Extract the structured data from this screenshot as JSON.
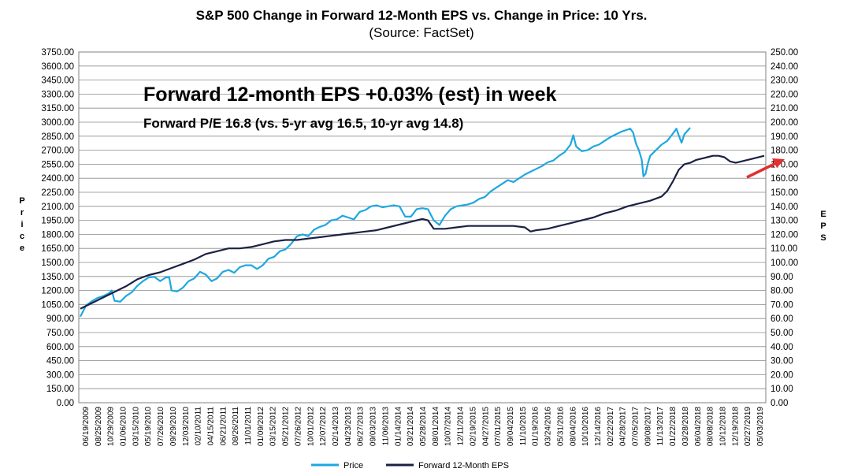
{
  "chart_data": {
    "type": "line",
    "title": "S&P 500 Change in Forward 12-Month EPS vs. Change in Price: 10 Yrs.",
    "subtitle": "(Source: FactSet)",
    "ylabel_left": "Price",
    "ylabel_right": "EPS",
    "ylim_left": [
      0,
      3750
    ],
    "ylim_right": [
      0,
      250
    ],
    "yticks_left": [
      "0.00",
      "150.00",
      "300.00",
      "450.00",
      "600.00",
      "750.00",
      "900.00",
      "1050.00",
      "1200.00",
      "1350.00",
      "1500.00",
      "1650.00",
      "1800.00",
      "1950.00",
      "2100.00",
      "2250.00",
      "2400.00",
      "2550.00",
      "2700.00",
      "2850.00",
      "3000.00",
      "3150.00",
      "3300.00",
      "3450.00",
      "3600.00",
      "3750.00"
    ],
    "yticks_right": [
      "0.00",
      "10.00",
      "20.00",
      "30.00",
      "40.00",
      "50.00",
      "60.00",
      "70.00",
      "80.00",
      "90.00",
      "100.00",
      "110.00",
      "120.00",
      "130.00",
      "140.00",
      "150.00",
      "160.00",
      "170.00",
      "180.00",
      "190.00",
      "200.00",
      "210.00",
      "220.00",
      "230.00",
      "240.00",
      "250.00"
    ],
    "x_tick_labels": [
      "06/19/2009",
      "08/25/2009",
      "10/29/2009",
      "01/06/2010",
      "03/15/2010",
      "05/19/2010",
      "07/26/2010",
      "09/29/2010",
      "12/03/2010",
      "02/10/2011",
      "04/15/2011",
      "06/21/2011",
      "08/26/2011",
      "11/01/2011",
      "01/09/2012",
      "03/15/2012",
      "05/21/2012",
      "07/26/2012",
      "10/01/2012",
      "12/07/2012",
      "02/14/2013",
      "04/23/2013",
      "06/27/2013",
      "09/03/2013",
      "11/06/2013",
      "01/14/2014",
      "03/21/2014",
      "05/28/2014",
      "08/01/2014",
      "10/07/2014",
      "12/11/2014",
      "02/19/2015",
      "04/27/2015",
      "07/01/2015",
      "09/04/2015",
      "11/10/2015",
      "01/19/2016",
      "03/24/2016",
      "05/31/2016",
      "08/04/2016",
      "10/10/2016",
      "12/14/2016",
      "02/22/2017",
      "04/28/2017",
      "07/05/2017",
      "09/08/2017",
      "11/13/2017",
      "01/22/2018",
      "03/28/2018",
      "06/04/2018",
      "08/08/2018",
      "10/12/2018",
      "12/19/2018",
      "02/27/2019",
      "05/03/2019"
    ],
    "annotations": [
      "Forward 12-month EPS +0.03% (est) in week",
      "Forward P/E 16.8 (vs. 5-yr avg 16.5, 10-yr avg 14.8)"
    ],
    "series": [
      {
        "name": "Price",
        "axis": "left",
        "color": "#1ea7e1",
        "points": [
          [
            0,
            921
          ],
          [
            1,
            1040
          ],
          [
            2,
            1085
          ],
          [
            3,
            1120
          ],
          [
            4,
            1140
          ],
          [
            5,
            1170
          ],
          [
            5.5,
            1200
          ],
          [
            6,
            1090
          ],
          [
            7,
            1080
          ],
          [
            8,
            1140
          ],
          [
            9,
            1180
          ],
          [
            10,
            1250
          ],
          [
            11,
            1300
          ],
          [
            12,
            1340
          ],
          [
            13,
            1345
          ],
          [
            14,
            1300
          ],
          [
            15,
            1340
          ],
          [
            15.6,
            1340
          ],
          [
            16,
            1200
          ],
          [
            17,
            1190
          ],
          [
            18,
            1230
          ],
          [
            19,
            1300
          ],
          [
            20,
            1330
          ],
          [
            21,
            1400
          ],
          [
            22,
            1370
          ],
          [
            23,
            1300
          ],
          [
            24,
            1330
          ],
          [
            25,
            1400
          ],
          [
            26,
            1420
          ],
          [
            27,
            1390
          ],
          [
            28,
            1450
          ],
          [
            29,
            1470
          ],
          [
            30,
            1470
          ],
          [
            31,
            1430
          ],
          [
            32,
            1470
          ],
          [
            33,
            1540
          ],
          [
            34,
            1560
          ],
          [
            35,
            1620
          ],
          [
            36,
            1640
          ],
          [
            37,
            1700
          ],
          [
            38,
            1780
          ],
          [
            39,
            1800
          ],
          [
            40,
            1780
          ],
          [
            41,
            1850
          ],
          [
            42,
            1880
          ],
          [
            43,
            1900
          ],
          [
            44,
            1950
          ],
          [
            45,
            1960
          ],
          [
            46,
            2000
          ],
          [
            47,
            1980
          ],
          [
            48,
            1960
          ],
          [
            49,
            2040
          ],
          [
            50,
            2060
          ],
          [
            51,
            2100
          ],
          [
            52,
            2110
          ],
          [
            53,
            2090
          ],
          [
            54,
            2100
          ],
          [
            55,
            2110
          ],
          [
            56,
            2100
          ],
          [
            57,
            1990
          ],
          [
            58,
            1990
          ],
          [
            59,
            2070
          ],
          [
            60,
            2080
          ],
          [
            61,
            2070
          ],
          [
            62,
            1950
          ],
          [
            63,
            1900
          ],
          [
            64,
            2000
          ],
          [
            65,
            2070
          ],
          [
            66,
            2100
          ],
          [
            67,
            2110
          ],
          [
            68,
            2120
          ],
          [
            69,
            2140
          ],
          [
            70,
            2180
          ],
          [
            71,
            2200
          ],
          [
            72,
            2260
          ],
          [
            73,
            2300
          ],
          [
            74,
            2340
          ],
          [
            75,
            2380
          ],
          [
            76,
            2360
          ],
          [
            77,
            2400
          ],
          [
            78,
            2440
          ],
          [
            79,
            2470
          ],
          [
            80,
            2500
          ],
          [
            81,
            2530
          ],
          [
            82,
            2570
          ],
          [
            83,
            2590
          ],
          [
            84,
            2640
          ],
          [
            85,
            2680
          ],
          [
            86,
            2760
          ],
          [
            86.5,
            2860
          ],
          [
            87,
            2740
          ],
          [
            88,
            2690
          ],
          [
            89,
            2700
          ],
          [
            90,
            2740
          ],
          [
            91,
            2760
          ],
          [
            92,
            2800
          ],
          [
            93,
            2840
          ],
          [
            94,
            2870
          ],
          [
            95,
            2900
          ],
          [
            96,
            2920
          ],
          [
            96.5,
            2930
          ],
          [
            97,
            2890
          ],
          [
            97.5,
            2770
          ],
          [
            98,
            2700
          ],
          [
            98.5,
            2600
          ],
          [
            98.8,
            2420
          ],
          [
            99.2,
            2450
          ],
          [
            99.6,
            2560
          ],
          [
            100,
            2640
          ],
          [
            101,
            2700
          ],
          [
            102,
            2760
          ],
          [
            103,
            2800
          ],
          [
            104,
            2880
          ],
          [
            104.6,
            2930
          ],
          [
            105,
            2860
          ],
          [
            105.5,
            2780
          ],
          [
            106,
            2870
          ],
          [
            107,
            2940
          ]
        ]
      },
      {
        "name": "Forward 12-Month EPS",
        "axis": "right",
        "color": "#1b2144",
        "points": [
          [
            0,
            67
          ],
          [
            2,
            71
          ],
          [
            4,
            75
          ],
          [
            6,
            79
          ],
          [
            8,
            83
          ],
          [
            10,
            88
          ],
          [
            12,
            91
          ],
          [
            14,
            93
          ],
          [
            16,
            96
          ],
          [
            18,
            99
          ],
          [
            20,
            102
          ],
          [
            22,
            106
          ],
          [
            24,
            108
          ],
          [
            26,
            110
          ],
          [
            28,
            110
          ],
          [
            30,
            111
          ],
          [
            32,
            113
          ],
          [
            34,
            115
          ],
          [
            36,
            116
          ],
          [
            38,
            116
          ],
          [
            40,
            117
          ],
          [
            42,
            118
          ],
          [
            44,
            119
          ],
          [
            46,
            120
          ],
          [
            48,
            121
          ],
          [
            50,
            122
          ],
          [
            52,
            123
          ],
          [
            54,
            125
          ],
          [
            56,
            127
          ],
          [
            58,
            129
          ],
          [
            60,
            131
          ],
          [
            61,
            130
          ],
          [
            62,
            124
          ],
          [
            64,
            124
          ],
          [
            66,
            125
          ],
          [
            68,
            126
          ],
          [
            70,
            126
          ],
          [
            72,
            126
          ],
          [
            74,
            126
          ],
          [
            76,
            126
          ],
          [
            78,
            125
          ],
          [
            79,
            122
          ],
          [
            80,
            123
          ],
          [
            82,
            124
          ],
          [
            84,
            126
          ],
          [
            86,
            128
          ],
          [
            88,
            130
          ],
          [
            90,
            132
          ],
          [
            92,
            135
          ],
          [
            94,
            137
          ],
          [
            96,
            140
          ],
          [
            98,
            142
          ],
          [
            100,
            144
          ],
          [
            102,
            147
          ],
          [
            103,
            151
          ],
          [
            104,
            158
          ],
          [
            105,
            166
          ],
          [
            106,
            170
          ],
          [
            107,
            171
          ],
          [
            108,
            173
          ],
          [
            109,
            174
          ],
          [
            110,
            175
          ],
          [
            111,
            176
          ],
          [
            112,
            176
          ],
          [
            113,
            175
          ],
          [
            114,
            172
          ],
          [
            115,
            171
          ],
          [
            116,
            172
          ],
          [
            117,
            173
          ],
          [
            118,
            174
          ],
          [
            120,
            176
          ]
        ]
      }
    ],
    "legend": [
      "Price",
      "Forward 12-Month EPS"
    ],
    "legend_position": "bottom-center"
  }
}
